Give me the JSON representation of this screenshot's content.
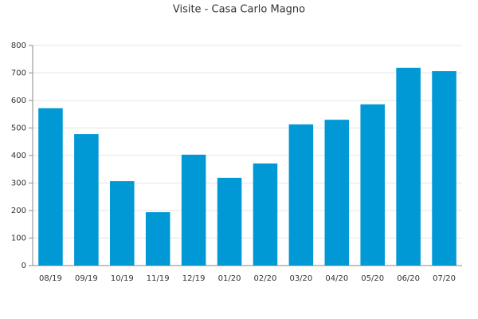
{
  "chart_data": {
    "type": "bar",
    "title": "Visite - Casa Carlo Magno",
    "categories": [
      "08/19",
      "09/19",
      "10/19",
      "11/19",
      "12/19",
      "01/20",
      "02/20",
      "03/20",
      "04/20",
      "05/20",
      "06/20",
      "07/20"
    ],
    "values": [
      572,
      478,
      307,
      194,
      403,
      319,
      371,
      513,
      530,
      586,
      719,
      707
    ],
    "color": "#0099d6",
    "ylim": [
      0,
      800
    ],
    "yticks": [
      0,
      100,
      200,
      300,
      400,
      500,
      600,
      700,
      800
    ],
    "grid": true
  }
}
